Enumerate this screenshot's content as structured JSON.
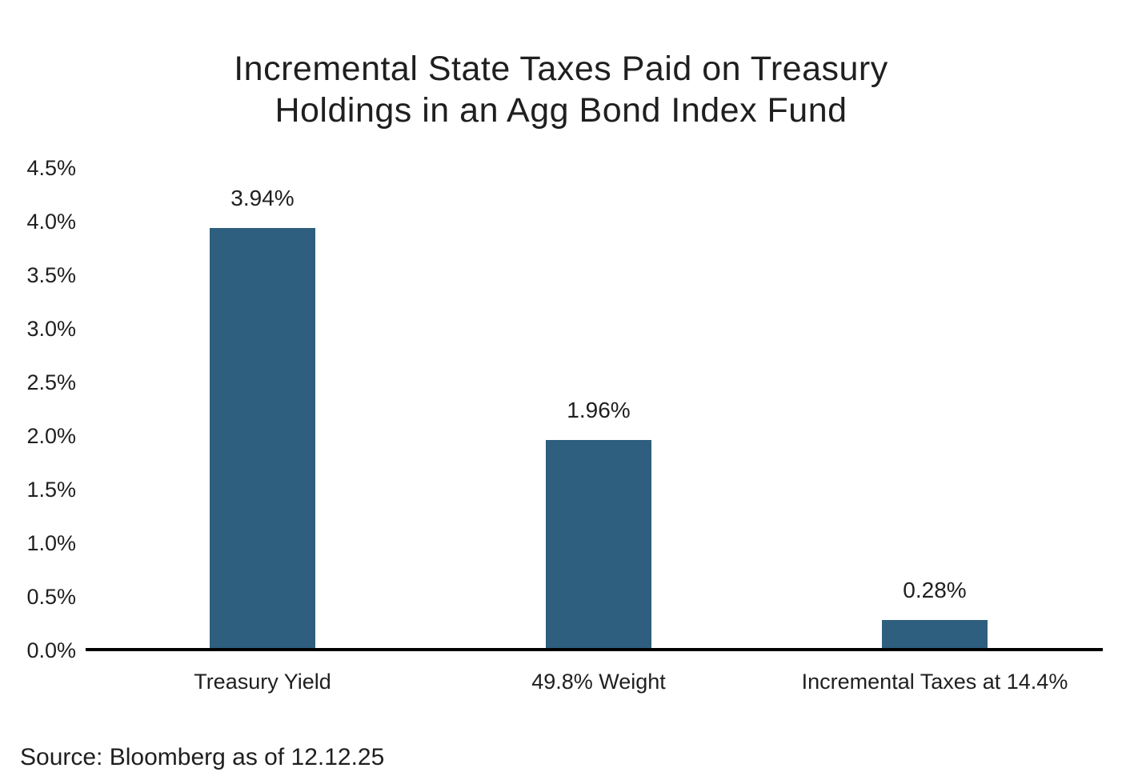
{
  "title": "Incremental State Taxes Paid on Treasury Holdings in an Agg Bond Index Fund",
  "title_lines": {
    "line1": "Incremental State Taxes Paid on Treasury",
    "line2": "Holdings in an Agg Bond Index Fund"
  },
  "source": "Source: Bloomberg as of 12.12.25",
  "colors": {
    "bar": "#2e5f7e",
    "text": "#1f1f1f",
    "axis": "#000000",
    "background": "#ffffff"
  },
  "chart_data": {
    "type": "bar",
    "title": "Incremental State Taxes Paid on Treasury Holdings in an Agg Bond Index Fund",
    "categories": [
      "Treasury Yield",
      "49.8% Weight",
      "Incremental Taxes at 14.4%"
    ],
    "values": [
      3.94,
      1.96,
      0.28
    ],
    "value_labels": [
      "3.94%",
      "1.96%",
      "0.28%"
    ],
    "xlabel": "",
    "ylabel": "",
    "ylim": [
      0,
      4.5
    ],
    "ytick_step": 0.5,
    "ytick_labels": [
      "4.5%",
      "4.0%",
      "3.5%",
      "3.0%",
      "2.5%",
      "2.0%",
      "1.5%",
      "1.0%",
      "0.5%",
      "0.0%"
    ],
    "grid": false,
    "legend": false,
    "source": "Source: Bloomberg as of 12.12.25"
  }
}
